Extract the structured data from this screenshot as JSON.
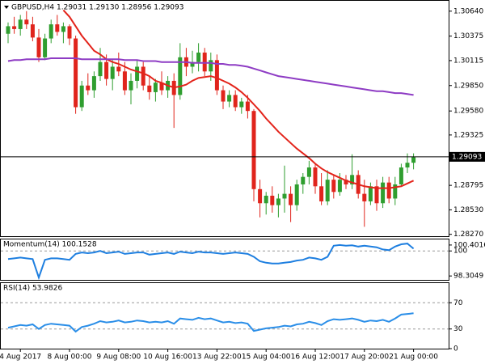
{
  "chart_data": [
    {
      "type": "candlestick",
      "header": "GBPUSD,H4  1.29031 1.29130 1.28956 1.29093",
      "x": [
        null,
        null,
        "4 Aug 2017",
        null,
        null,
        null,
        null,
        null,
        null,
        null,
        "8 Aug 00:00",
        null,
        null,
        null,
        null,
        null,
        null,
        null,
        "9 Aug 08:00",
        null,
        null,
        null,
        null,
        null,
        null,
        null,
        "10 Aug 16:00",
        null,
        null,
        null,
        null,
        null,
        null,
        null,
        "13 Aug 22:00",
        null,
        null,
        null,
        null,
        null,
        null,
        null,
        "15 Aug 04:00",
        null,
        null,
        null,
        null,
        null,
        null,
        null,
        "16 Aug 12:00",
        null,
        null,
        null,
        null,
        null,
        null,
        null,
        "17 Aug 20:00",
        null,
        null,
        null,
        null,
        null,
        null,
        null,
        "21 Aug 00:00"
      ],
      "ohlc": [
        [
          1.304,
          1.3052,
          1.303,
          1.3048
        ],
        [
          1.3048,
          1.3058,
          1.304,
          1.3045
        ],
        [
          1.3045,
          1.306,
          1.3038,
          1.3055
        ],
        [
          1.3055,
          1.3064,
          1.3045,
          1.305
        ],
        [
          1.305,
          1.3058,
          1.3032,
          1.3036
        ],
        [
          1.3036,
          1.3045,
          1.301,
          1.3015
        ],
        [
          1.3015,
          1.304,
          1.3012,
          1.3035
        ],
        [
          1.3035,
          1.3055,
          1.303,
          1.305
        ],
        [
          1.305,
          1.306,
          1.3038,
          1.3042
        ],
        [
          1.3042,
          1.3052,
          1.303,
          1.3048
        ],
        [
          1.3048,
          1.305,
          1.3028,
          1.3035
        ],
        [
          1.3035,
          1.3038,
          1.2955,
          1.2962
        ],
        [
          1.2962,
          1.299,
          1.2958,
          1.2985
        ],
        [
          1.2985,
          1.2998,
          1.2975,
          1.298
        ],
        [
          1.298,
          1.3,
          1.2972,
          1.2995
        ],
        [
          1.2995,
          1.3025,
          1.299,
          1.301
        ],
        [
          1.301,
          1.3018,
          1.2985,
          1.2992
        ],
        [
          1.2992,
          1.3012,
          1.298,
          1.3005
        ],
        [
          1.3005,
          1.302,
          1.2995,
          1.3
        ],
        [
          1.3,
          1.301,
          1.2975,
          1.298
        ],
        [
          1.298,
          1.2998,
          1.2965,
          1.299
        ],
        [
          1.299,
          1.3012,
          1.2982,
          1.3005
        ],
        [
          1.3005,
          1.301,
          1.298,
          1.2985
        ],
        [
          1.2985,
          1.2995,
          1.297,
          1.2978
        ],
        [
          1.2978,
          1.2992,
          1.2968,
          1.2988
        ],
        [
          1.2988,
          1.3,
          1.2975,
          1.298
        ],
        [
          1.298,
          1.2995,
          1.2972,
          1.299
        ],
        [
          1.299,
          1.2998,
          1.294,
          1.2975
        ],
        [
          1.2975,
          1.303,
          1.297,
          1.3015
        ],
        [
          1.3015,
          1.3025,
          1.2995,
          1.3005
        ],
        [
          1.3005,
          1.3022,
          1.2998,
          1.301
        ],
        [
          1.301,
          1.303,
          1.3,
          1.302
        ],
        [
          1.302,
          1.3025,
          1.2995,
          1.3
        ],
        [
          1.3,
          1.302,
          1.299,
          1.3012
        ],
        [
          1.3012,
          1.3018,
          1.2975,
          1.298
        ],
        [
          1.298,
          1.2985,
          1.296,
          1.2968
        ],
        [
          1.2968,
          1.298,
          1.2962,
          1.2975
        ],
        [
          1.2975,
          1.298,
          1.2958,
          1.2962
        ],
        [
          1.2962,
          1.2972,
          1.2955,
          1.2968
        ],
        [
          1.2968,
          1.2975,
          1.295,
          1.2958
        ],
        [
          1.2958,
          1.296,
          1.2862,
          1.2875
        ],
        [
          1.2875,
          1.2885,
          1.2845,
          1.286
        ],
        [
          1.286,
          1.2872,
          1.2848,
          1.2868
        ],
        [
          1.2868,
          1.2878,
          1.285,
          1.2858
        ],
        [
          1.2858,
          1.287,
          1.2845,
          1.2865
        ],
        [
          1.2865,
          1.29,
          1.285,
          1.287
        ],
        [
          1.287,
          1.2878,
          1.284,
          1.2858
        ],
        [
          1.2858,
          1.2885,
          1.2852,
          1.288
        ],
        [
          1.288,
          1.2892,
          1.287,
          1.2888
        ],
        [
          1.2888,
          1.2905,
          1.288,
          1.2898
        ],
        [
          1.2898,
          1.2902,
          1.287,
          1.2878
        ],
        [
          1.2878,
          1.2892,
          1.2858,
          1.2862
        ],
        [
          1.2862,
          1.2895,
          1.2858,
          1.2885
        ],
        [
          1.2885,
          1.289,
          1.2865,
          1.2872
        ],
        [
          1.2872,
          1.2892,
          1.2868,
          1.2885
        ],
        [
          1.2885,
          1.289,
          1.2875,
          1.288
        ],
        [
          1.288,
          1.2912,
          1.2875,
          1.289
        ],
        [
          1.289,
          1.2895,
          1.2865,
          1.287
        ],
        [
          1.287,
          1.2885,
          1.2835,
          1.2862
        ],
        [
          1.2862,
          1.2882,
          1.2858,
          1.2878
        ],
        [
          1.2878,
          1.2885,
          1.2852,
          1.286
        ],
        [
          1.286,
          1.2888,
          1.2855,
          1.2882
        ],
        [
          1.2882,
          1.2888,
          1.286,
          1.2865
        ],
        [
          1.2865,
          1.2888,
          1.2858,
          1.288
        ],
        [
          1.288,
          1.2902,
          1.2878,
          1.2898
        ],
        [
          1.2898,
          1.2913,
          1.2892,
          1.2903
        ],
        [
          1.2903,
          1.2913,
          1.2896,
          1.2909
        ]
      ],
      "up_color": "#2f9e2f",
      "down_color": "#e0241c",
      "series": [
        {
          "color": "#e3241b",
          "values": [
            null,
            null,
            null,
            null,
            null,
            null,
            null,
            null,
            null,
            1.3065,
            1.3058,
            1.3048,
            1.3038,
            1.303,
            1.3022,
            1.3018,
            1.3013,
            1.301,
            1.3008,
            1.3005,
            1.3002,
            1.3,
            1.2998,
            1.2995,
            1.299,
            1.2988,
            1.2985,
            1.2983,
            1.2984,
            1.2986,
            1.299,
            1.2993,
            1.2994,
            1.2995,
            1.2993,
            1.299,
            1.2987,
            1.2983,
            1.2978,
            1.2972,
            1.2965,
            1.2958,
            1.295,
            1.2943,
            1.2936,
            1.293,
            1.2924,
            1.2918,
            1.2913,
            1.2908,
            1.2902,
            1.2897,
            1.2893,
            1.289,
            1.2887,
            1.2884,
            1.2882,
            1.288,
            1.2878,
            1.2877,
            1.2876,
            1.2876,
            1.2876,
            1.2877,
            1.2878,
            1.2881,
            1.2884
          ]
        },
        {
          "color": "#8e3cc4",
          "values": [
            1.3011,
            1.3012,
            1.3012,
            1.3013,
            1.3013,
            1.3013,
            1.3013,
            1.3014,
            1.3014,
            1.3014,
            1.3014,
            1.3014,
            1.3013,
            1.3013,
            1.3013,
            1.3013,
            1.3013,
            1.3013,
            1.3013,
            1.3012,
            1.3012,
            1.3012,
            1.3011,
            1.3011,
            1.3011,
            1.301,
            1.301,
            1.301,
            1.301,
            1.301,
            1.3009,
            1.3009,
            1.3009,
            1.3009,
            1.3008,
            1.3008,
            1.3007,
            1.3007,
            1.3006,
            1.3005,
            1.3003,
            1.3001,
            1.2999,
            1.2997,
            1.2995,
            1.2994,
            1.2993,
            1.2992,
            1.2991,
            1.299,
            1.2989,
            1.2988,
            1.2987,
            1.2986,
            1.2985,
            1.2984,
            1.2983,
            1.2982,
            1.2981,
            1.298,
            1.2979,
            1.2979,
            1.2978,
            1.2977,
            1.2977,
            1.2976,
            1.2975
          ]
        }
      ],
      "ylim": [
        1.2825,
        1.3075
      ],
      "yticks": [
        {
          "value": 1.3064,
          "label": "1.30640"
        },
        {
          "value": 1.30375,
          "label": "1.30375"
        },
        {
          "value": 1.30115,
          "label": "1.30115"
        },
        {
          "value": 1.2985,
          "label": "1.29850"
        },
        {
          "value": 1.2958,
          "label": "1.29580"
        },
        {
          "value": 1.29325,
          "label": "1.29325"
        },
        {
          "value": 1.2879,
          "label": "1.28795"
        },
        {
          "value": 1.2853,
          "label": "1.28530"
        },
        {
          "value": 1.2827,
          "label": "1.28270"
        }
      ],
      "last_price": {
        "value": 1.29093,
        "label": "1.29093"
      }
    },
    {
      "type": "line",
      "label": "Momentum(14) 100.1528",
      "color": "#1e7fe0",
      "values": [
        99.45,
        99.5,
        99.55,
        99.5,
        99.45,
        98.2,
        99.4,
        99.5,
        99.5,
        99.45,
        99.4,
        99.8,
        99.9,
        99.85,
        99.9,
        100.0,
        99.85,
        99.9,
        99.95,
        99.8,
        99.85,
        99.9,
        99.9,
        99.75,
        99.8,
        99.85,
        99.9,
        99.8,
        99.95,
        99.9,
        99.85,
        99.95,
        99.9,
        99.9,
        99.85,
        99.8,
        99.85,
        99.9,
        99.85,
        99.8,
        99.6,
        99.3,
        99.2,
        99.15,
        99.15,
        99.2,
        99.25,
        99.35,
        99.4,
        99.55,
        99.5,
        99.4,
        99.6,
        100.35,
        100.4,
        100.35,
        100.38,
        100.3,
        100.35,
        100.3,
        100.25,
        100.1,
        100.05,
        100.3,
        100.45,
        100.5,
        100.1528
      ],
      "ylim": [
        98.04,
        100.78
      ],
      "yticks": [
        100.4016,
        100,
        98.3049
      ],
      "levels": [
        100
      ]
    },
    {
      "type": "line",
      "label": "RSI(14) 53.9826",
      "color": "#2a8ee8",
      "values": [
        32,
        34,
        36,
        35,
        37,
        30,
        36,
        38,
        37,
        36,
        35,
        26,
        33,
        35,
        38,
        42,
        40,
        41,
        43,
        40,
        41,
        43,
        42,
        40,
        41,
        40,
        42,
        38,
        46,
        45,
        44,
        47,
        45,
        46,
        43,
        40,
        41,
        39,
        40,
        38,
        27,
        29,
        31,
        32,
        33,
        35,
        34,
        37,
        38,
        41,
        39,
        36,
        42,
        45,
        44,
        45,
        46,
        44,
        41,
        43,
        42,
        44,
        41,
        46,
        52,
        53,
        53.9826
      ],
      "ylim": [
        0,
        100
      ],
      "yticks": [
        70,
        30,
        0
      ],
      "levels": [
        70,
        30
      ]
    }
  ]
}
